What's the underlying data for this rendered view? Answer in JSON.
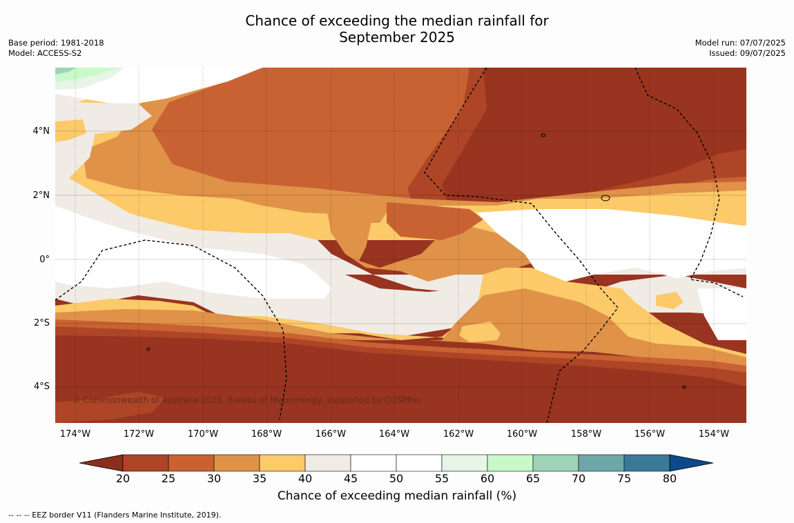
{
  "title": {
    "line1": "Chance of exceeding the median rainfall for",
    "line2": "September 2025"
  },
  "meta_left": {
    "base_period": "Base period: 1981-2018",
    "model": "Model: ACCESS-S2"
  },
  "meta_right": {
    "model_run": "Model run: 07/07/2025",
    "issued": "Issued: 09/07/2025"
  },
  "map": {
    "latitude_labels": [
      "4°N",
      "2°N",
      "0°",
      "2°S",
      "4°S"
    ],
    "longitude_labels": [
      "174°W",
      "172°W",
      "170°W",
      "168°W",
      "166°W",
      "164°W",
      "162°W",
      "160°W",
      "158°W",
      "156°W",
      "154°W"
    ],
    "copyright": "© Commonwealth of Australia 2025, Bureau of Meteorology, supported by COSPPac"
  },
  "colorbar": {
    "ticks": [
      "20",
      "25",
      "30",
      "35",
      "40",
      "45",
      "50",
      "55",
      "60",
      "65",
      "70",
      "75",
      "80"
    ],
    "colors": [
      "#8c2e1e",
      "#ad4526",
      "#c86233",
      "#df9248",
      "#fdca6a",
      "#f0ebe5",
      "#ffffff",
      "#ffffff",
      "#e6f5e6",
      "#c9f9c9",
      "#9fd3b8",
      "#6ea7a8",
      "#3a7a98",
      "#0d4a8a"
    ],
    "title": "Chance of exceeding median rainfall (%)"
  },
  "footnote": "--  --  -- EEZ border V11 (Flanders Marine Institute, 2019)."
}
